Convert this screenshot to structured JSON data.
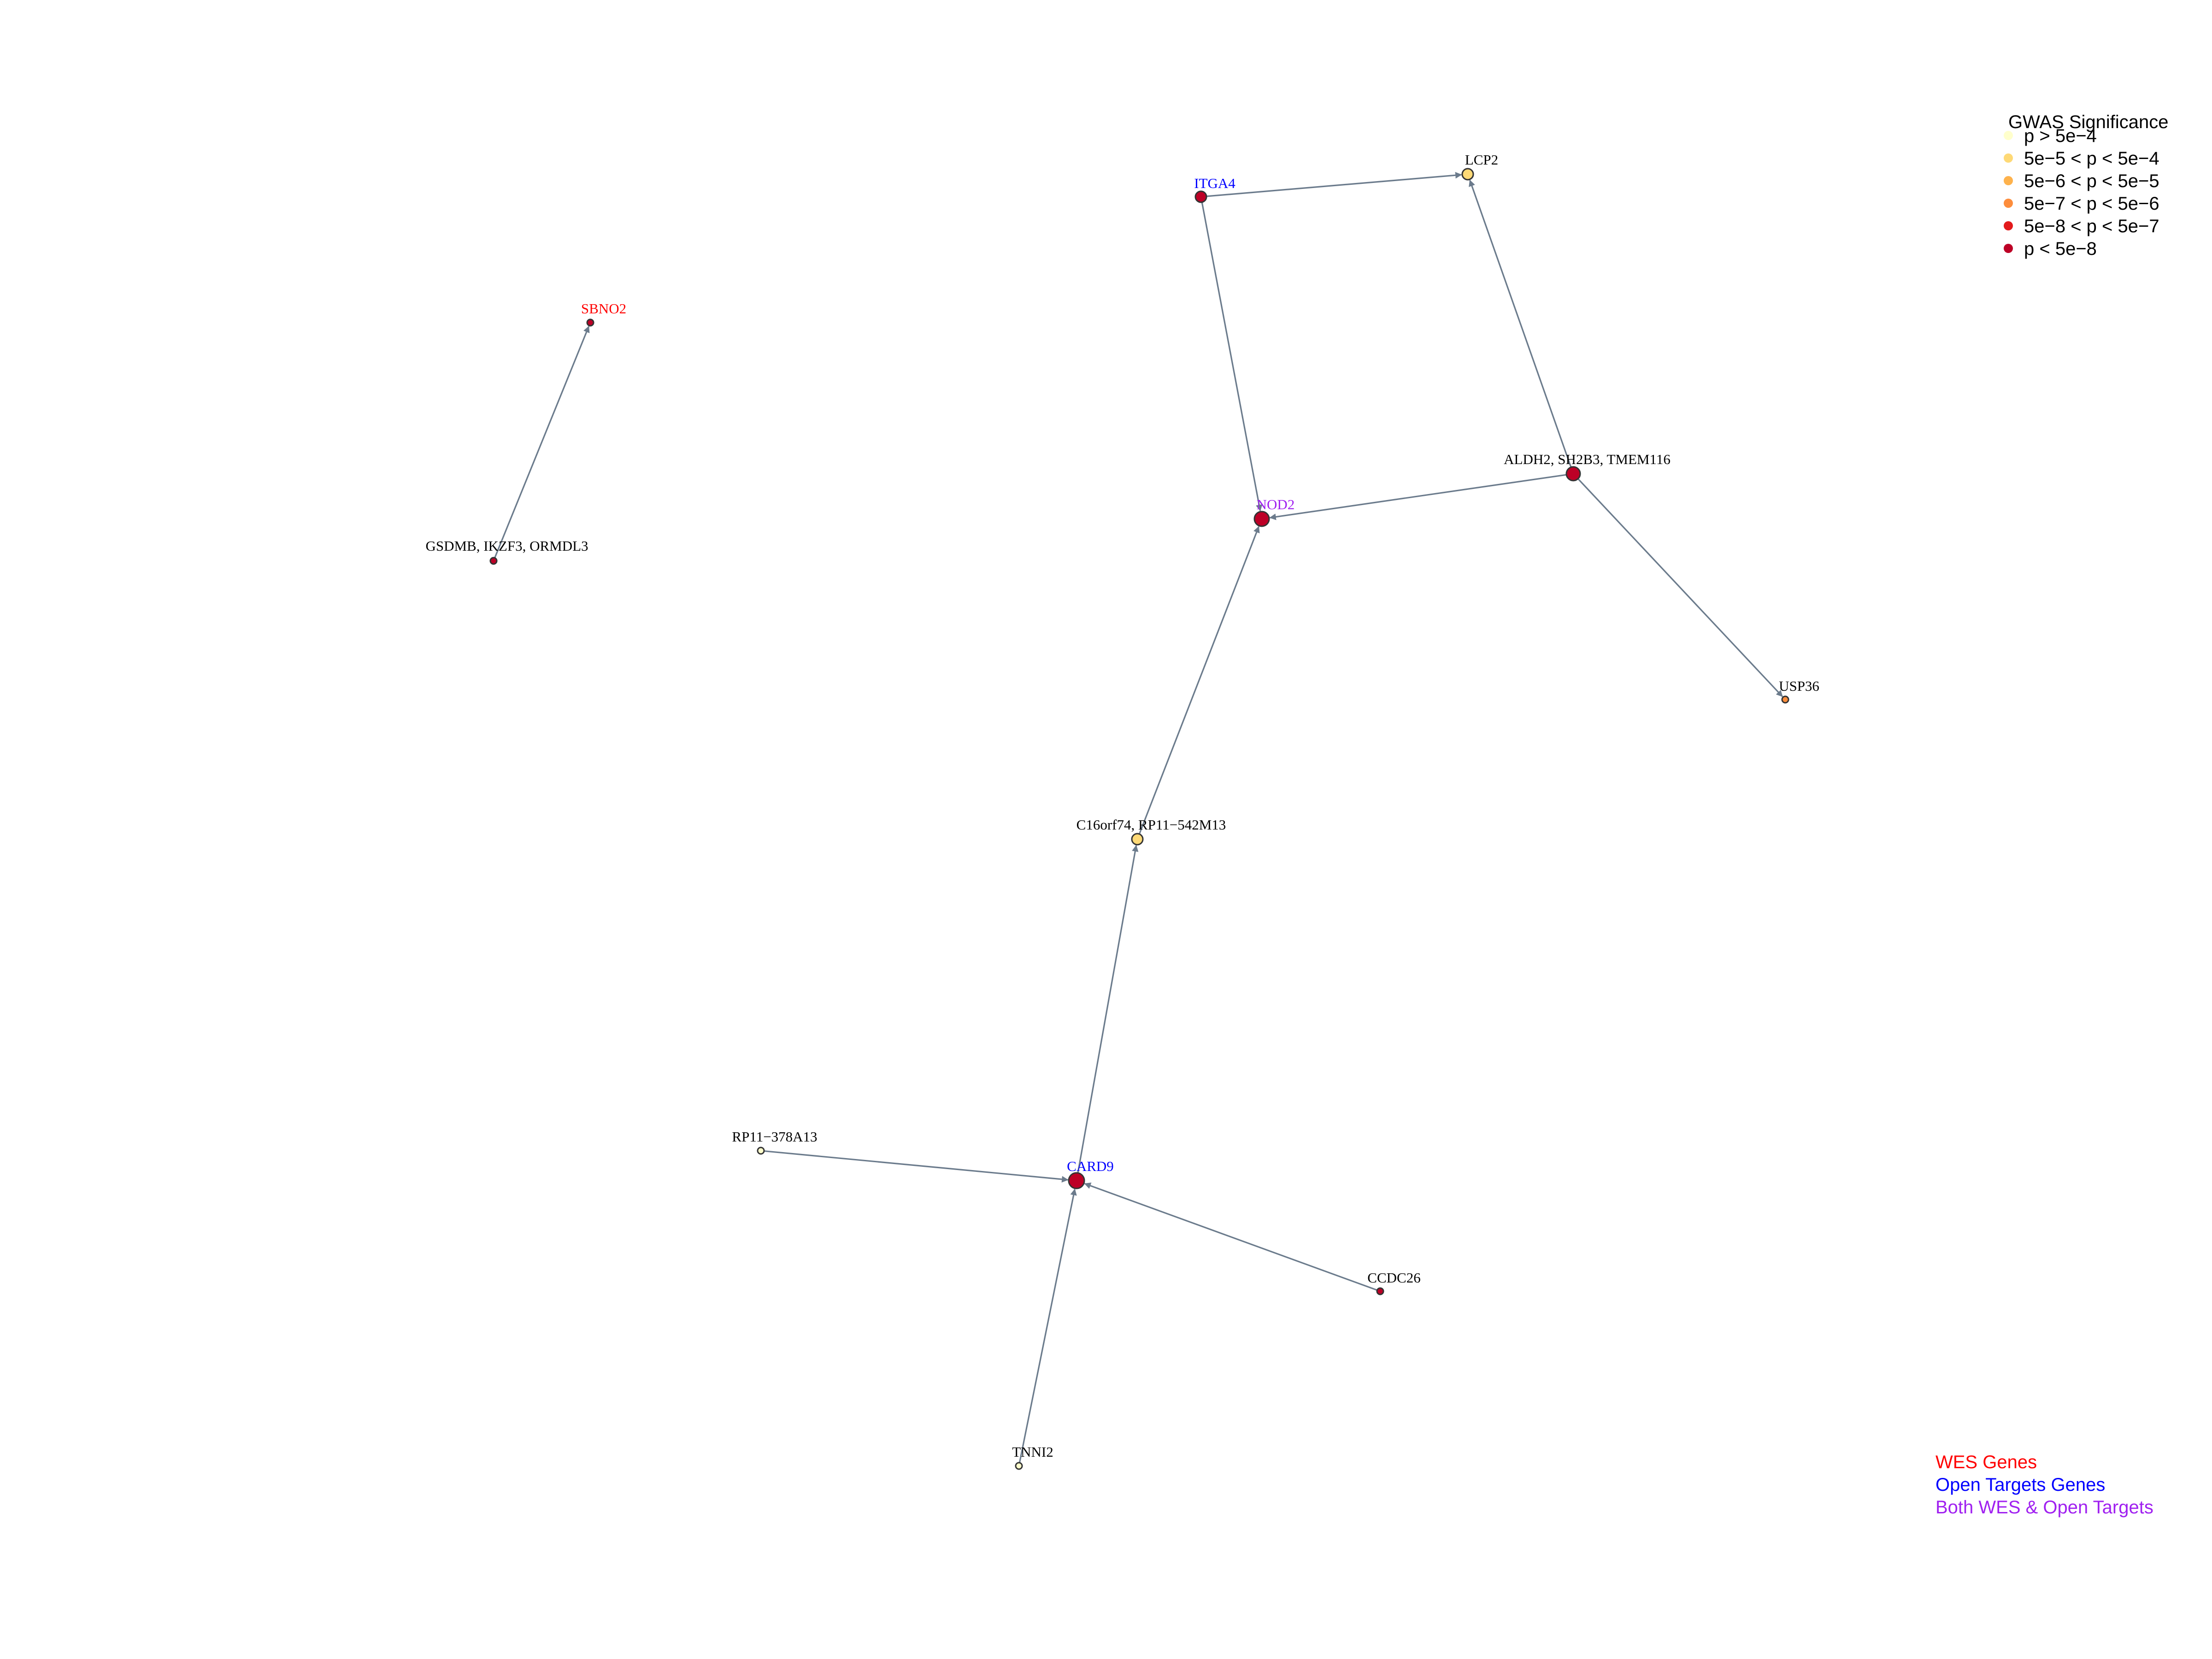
{
  "colors": {
    "edge": "#6b7b8c",
    "label_default": "#000000",
    "label_wes": "#ff0000",
    "label_open_targets": "#0000ff",
    "label_both": "#a020f0",
    "sig_p_gt_5e4": "#ffffcc",
    "sig_5e5_5e4": "#fed976",
    "sig_5e6_5e5": "#feb24c",
    "sig_5e7_5e6": "#fd8d3c",
    "sig_5e8_5e7": "#e31a1c",
    "sig_p_lt_5e8": "#bd0026"
  },
  "legend": {
    "title": "GWAS Significance",
    "items": [
      {
        "label": "p > 5e−4",
        "color": "#ffffcc"
      },
      {
        "label": "5e−5 < p < 5e−4",
        "color": "#fed976"
      },
      {
        "label": "5e−6 < p < 5e−5",
        "color": "#feb24c"
      },
      {
        "label": "5e−7 < p < 5e−6",
        "color": "#fd8d3c"
      },
      {
        "label": "5e−8 < p < 5e−7",
        "color": "#e31a1c"
      },
      {
        "label": "p < 5e−8",
        "color": "#bd0026"
      }
    ]
  },
  "color_key": {
    "wes": "WES Genes",
    "open_targets": "Open Targets Genes",
    "both": "Both WES & Open Targets"
  },
  "network": {
    "nodes": [
      {
        "id": "SBNO2",
        "label": "SBNO2",
        "category": "wes",
        "significance": "p < 5e−8"
      },
      {
        "id": "GSDMB",
        "label": "GSDMB, IKZF3, ORMDL3",
        "category": "none",
        "significance": "p < 5e−8"
      },
      {
        "id": "ITGA4",
        "label": "ITGA4",
        "category": "open_targets",
        "significance": "p < 5e−8"
      },
      {
        "id": "LCP2",
        "label": "LCP2",
        "category": "none",
        "significance": "5e−5 < p < 5e−4"
      },
      {
        "id": "ALDH2",
        "label": "ALDH2, SH2B3, TMEM116",
        "category": "none",
        "significance": "p < 5e−8"
      },
      {
        "id": "NOD2",
        "label": "NOD2",
        "category": "both",
        "significance": "p < 5e−8"
      },
      {
        "id": "USP36",
        "label": "USP36",
        "category": "none",
        "significance": "5e−7 < p < 5e−6"
      },
      {
        "id": "C16orf74",
        "label": "C16orf74, RP11−542M13",
        "category": "none",
        "significance": "5e−5 < p < 5e−4"
      },
      {
        "id": "RP11",
        "label": "RP11−378A13",
        "category": "none",
        "significance": "p > 5e−4"
      },
      {
        "id": "CARD9",
        "label": "CARD9",
        "category": "open_targets",
        "significance": "p < 5e−8"
      },
      {
        "id": "CCDC26",
        "label": "CCDC26",
        "category": "none",
        "significance": "p < 5e−8"
      },
      {
        "id": "TNNI2",
        "label": "TNNI2",
        "category": "none",
        "significance": "p > 5e−4"
      }
    ],
    "edges": [
      {
        "from": "GSDMB",
        "to": "SBNO2"
      },
      {
        "from": "ITGA4",
        "to": "LCP2"
      },
      {
        "from": "ITGA4",
        "to": "NOD2"
      },
      {
        "from": "ALDH2",
        "to": "LCP2"
      },
      {
        "from": "ALDH2",
        "to": "NOD2"
      },
      {
        "from": "ALDH2",
        "to": "USP36"
      },
      {
        "from": "C16orf74",
        "to": "NOD2"
      },
      {
        "from": "CARD9",
        "to": "C16orf74"
      },
      {
        "from": "RP11",
        "to": "CARD9"
      },
      {
        "from": "CCDC26",
        "to": "CARD9"
      },
      {
        "from": "TNNI2",
        "to": "CARD9"
      }
    ]
  }
}
